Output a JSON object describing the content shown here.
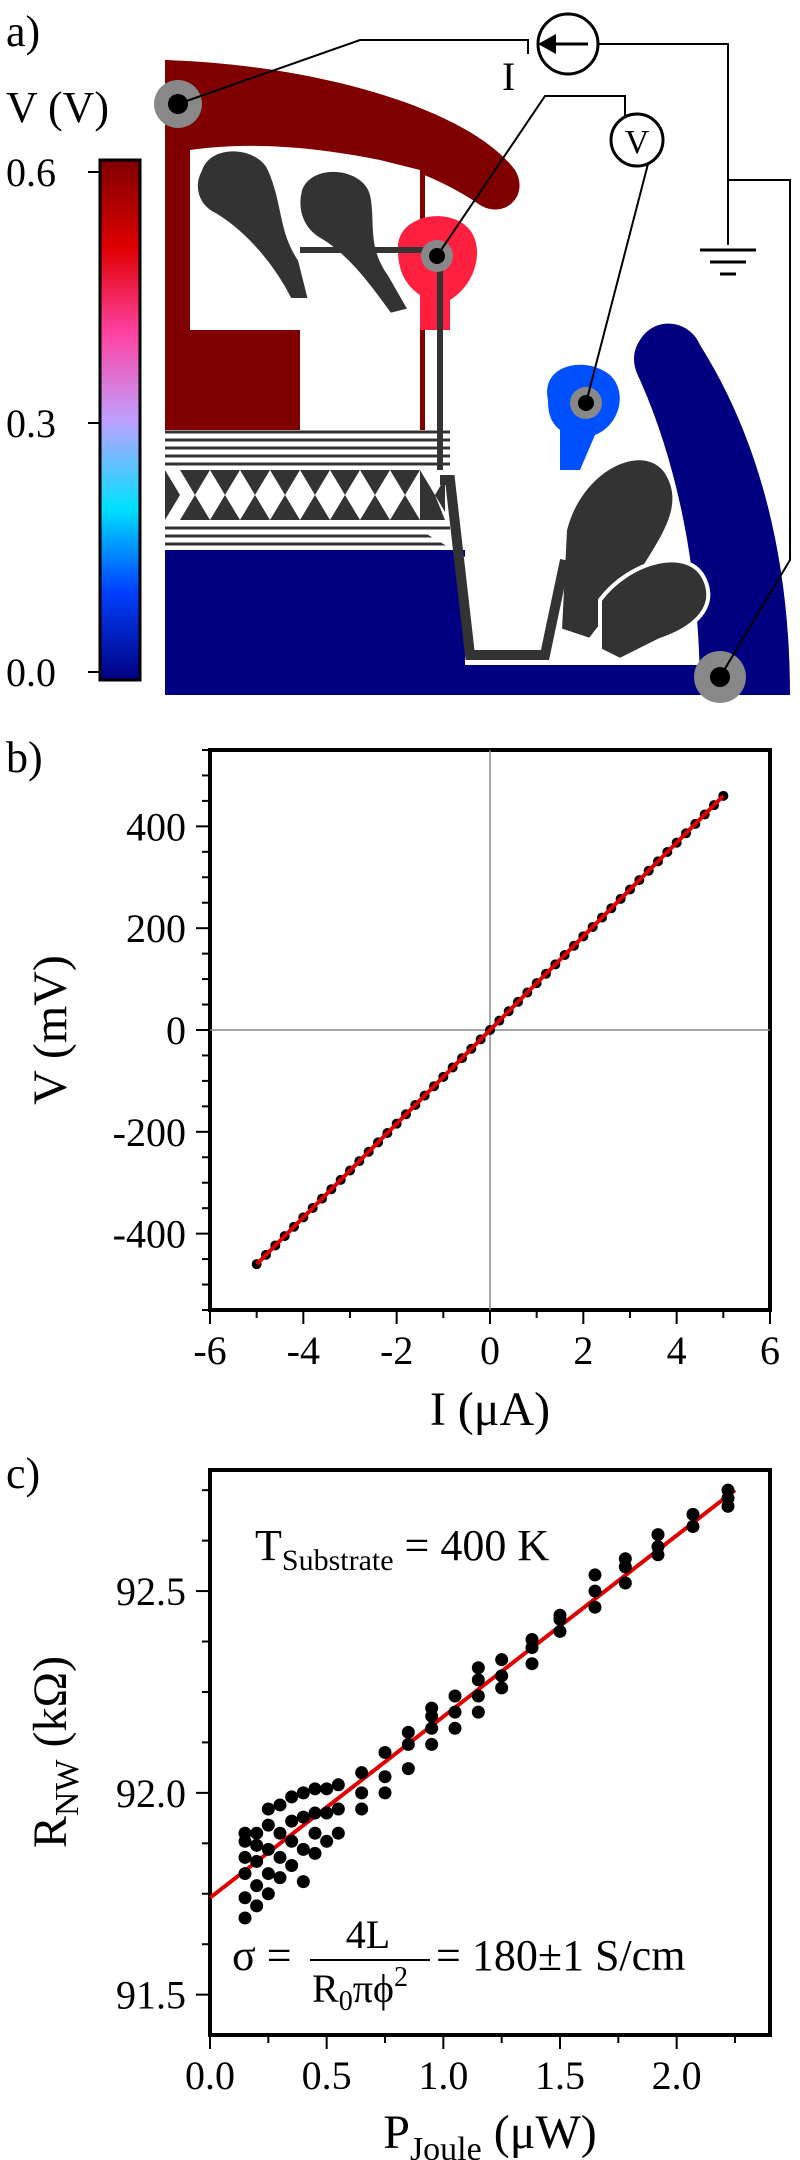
{
  "panels": {
    "a": {
      "label": "a)"
    },
    "b": {
      "label": "b)"
    },
    "c": {
      "label": "c)"
    }
  },
  "circuit": {
    "current_source_label": "I",
    "voltmeter_label": "V"
  },
  "colorbar": {
    "title": "V (V)",
    "ticks": [
      "0.6",
      "0.3",
      "0.0"
    ],
    "colors": [
      "#000080",
      "#0040ff",
      "#00e0ff",
      "#c0a0ff",
      "#ff40a0",
      "#e00000",
      "#800000"
    ]
  },
  "chart_data": [
    {
      "type": "scatter",
      "panel": "b",
      "xlabel": "I (μA)",
      "ylabel": "V (mV)",
      "xlim": [
        -6,
        6
      ],
      "ylim": [
        -550,
        550
      ],
      "xticks": [
        -6,
        -4,
        -2,
        0,
        2,
        4,
        6
      ],
      "yticks": [
        -400,
        -200,
        0,
        200,
        400
      ],
      "xtick_labels": [
        "-6",
        "-4",
        "-2",
        "0",
        "2",
        "4",
        "6"
      ],
      "ytick_labels": [
        "-400",
        "-200",
        "0",
        "200",
        "400"
      ],
      "zero_lines": true,
      "series": [
        {
          "kind": "points",
          "color": "#000000",
          "x_start": -5,
          "x_end": 5,
          "count": 51,
          "slope": 92,
          "intercept": 0
        },
        {
          "kind": "fit-line",
          "color": "#e00000",
          "x": [
            -5,
            5
          ],
          "y": [
            -460,
            460
          ]
        }
      ]
    },
    {
      "type": "scatter",
      "panel": "c",
      "xlabel": "P",
      "xlabel_sub": "Joule",
      "xlabel_unit": " (μW)",
      "ylabel": "R",
      "ylabel_sub": "NW",
      "ylabel_unit": " (kΩ)",
      "xlim": [
        0.0,
        2.4
      ],
      "ylim": [
        91.4,
        92.8
      ],
      "xticks": [
        0.0,
        0.5,
        1.0,
        1.5,
        2.0
      ],
      "yticks": [
        91.5,
        92.0,
        92.5
      ],
      "xtick_labels": [
        "0.0",
        "0.5",
        "1.0",
        "1.5",
        "2.0"
      ],
      "ytick_labels": [
        "91.5",
        "92.0",
        "92.5"
      ],
      "annotation_T": {
        "main": "T",
        "sub": "Substrate",
        "rest": " = 400 K"
      },
      "annotation_sigma": {
        "lhs": "σ =",
        "numerator": "4L",
        "den_R": "R",
        "den_sub": "0",
        "den_rest": "πϕ",
        "den_sup": "2",
        "rhs": "= 180±1 S/cm"
      },
      "series": [
        {
          "kind": "points",
          "color": "#000000",
          "x": [
            0.15,
            0.15,
            0.15,
            0.15,
            0.15,
            0.15,
            0.2,
            0.2,
            0.2,
            0.2,
            0.2,
            0.25,
            0.25,
            0.25,
            0.25,
            0.25,
            0.3,
            0.3,
            0.3,
            0.3,
            0.35,
            0.35,
            0.35,
            0.35,
            0.4,
            0.4,
            0.4,
            0.4,
            0.45,
            0.45,
            0.45,
            0.45,
            0.5,
            0.5,
            0.5,
            0.55,
            0.55,
            0.55,
            0.65,
            0.65,
            0.65,
            0.75,
            0.75,
            0.75,
            0.85,
            0.85,
            0.85,
            0.95,
            0.95,
            0.95,
            0.95,
            1.05,
            1.05,
            1.05,
            1.15,
            1.15,
            1.15,
            1.15,
            1.25,
            1.25,
            1.25,
            1.38,
            1.38,
            1.38,
            1.5,
            1.5,
            1.5,
            1.65,
            1.65,
            1.65,
            1.78,
            1.78,
            1.78,
            1.92,
            1.92,
            1.92,
            2.07,
            2.07,
            2.22,
            2.22,
            2.22
          ],
          "y": [
            91.69,
            91.74,
            91.8,
            91.84,
            91.88,
            91.9,
            91.72,
            91.77,
            91.83,
            91.87,
            91.9,
            91.75,
            91.8,
            91.86,
            91.92,
            91.96,
            91.79,
            91.84,
            91.9,
            91.97,
            91.82,
            91.88,
            91.93,
            91.99,
            91.78,
            91.86,
            91.94,
            92.0,
            91.85,
            91.9,
            91.95,
            92.01,
            91.88,
            91.95,
            92.01,
            91.9,
            91.96,
            92.02,
            91.96,
            92.0,
            92.05,
            92.0,
            92.04,
            92.1,
            92.06,
            92.12,
            92.15,
            92.12,
            92.16,
            92.19,
            92.21,
            92.16,
            92.2,
            92.24,
            92.2,
            92.24,
            92.28,
            92.31,
            92.26,
            92.29,
            92.33,
            92.32,
            92.36,
            92.38,
            92.4,
            92.43,
            92.44,
            92.46,
            92.5,
            92.54,
            92.52,
            92.56,
            92.58,
            92.59,
            92.61,
            92.64,
            92.66,
            92.69,
            92.71,
            92.73,
            92.75
          ]
        },
        {
          "kind": "fit-line",
          "color": "#e00000",
          "x": [
            0.0,
            2.25
          ],
          "y": [
            91.74,
            92.75
          ]
        }
      ]
    }
  ]
}
